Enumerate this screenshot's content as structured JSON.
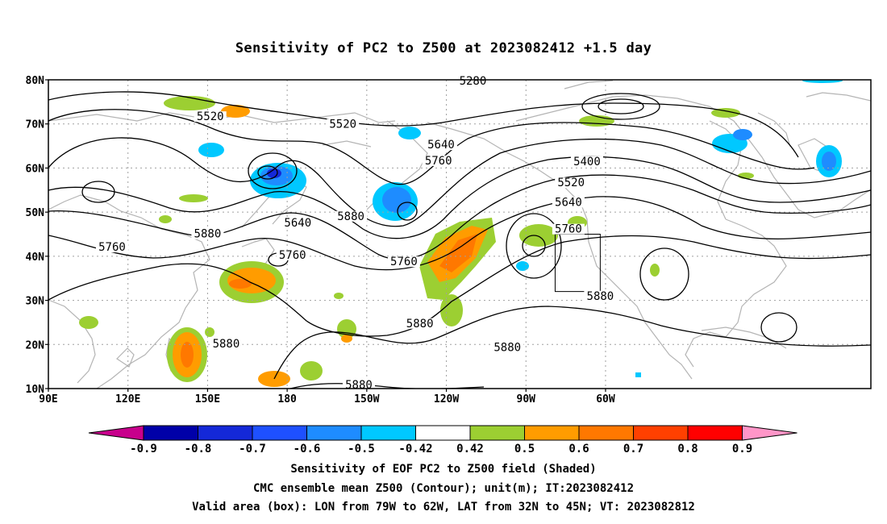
{
  "title": "Sensitivity of PC2 to Z500 at 2023082412 +1.5 day",
  "lat_ticks": [
    "80N",
    "70N",
    "60N",
    "50N",
    "40N",
    "30N",
    "20N",
    "10N"
  ],
  "lon_ticks": [
    "90E",
    "120E",
    "150E",
    "180",
    "150W",
    "120W",
    "90W",
    "60W"
  ],
  "contour_labels": [
    {
      "text": "5280",
      "lon": -110,
      "lat": 79.3
    },
    {
      "text": "5520",
      "lon": 151,
      "lat": 71.2
    },
    {
      "text": "5520",
      "lon": -159,
      "lat": 69.5
    },
    {
      "text": "5640",
      "lon": -122,
      "lat": 64.8
    },
    {
      "text": "5760",
      "lon": -123,
      "lat": 61.2
    },
    {
      "text": "5400",
      "lon": -67,
      "lat": 61.0
    },
    {
      "text": "5520",
      "lon": -73,
      "lat": 56.2
    },
    {
      "text": "5640",
      "lon": -74,
      "lat": 51.8
    },
    {
      "text": "5880",
      "lon": -156,
      "lat": 48.6
    },
    {
      "text": "5880",
      "lon": 150,
      "lat": 44.6
    },
    {
      "text": "5760",
      "lon": 114,
      "lat": 41.6
    },
    {
      "text": "5640",
      "lon": -176,
      "lat": 47.1
    },
    {
      "text": "5760",
      "lon": -178,
      "lat": 39.8
    },
    {
      "text": "5760",
      "lon": -74,
      "lat": 45.7
    },
    {
      "text": "5760",
      "lon": -136,
      "lat": 38.3
    },
    {
      "text": "5880",
      "lon": -130,
      "lat": 24.3
    },
    {
      "text": "5880",
      "lon": -62,
      "lat": 30.5
    },
    {
      "text": "5880",
      "lon": -97,
      "lat": 18.9
    },
    {
      "text": "5880",
      "lon": 157,
      "lat": 19.7
    },
    {
      "text": "5880",
      "lon": -153,
      "lat": 10.4
    }
  ],
  "valid_box": {
    "lon_west": -79,
    "lon_east": -62,
    "lat_south": 32,
    "lat_north": 45
  },
  "colorbar": {
    "labels": [
      "-0.9",
      "-0.8",
      "-0.7",
      "-0.6",
      "-0.5",
      "-0.42",
      "0.42",
      "0.5",
      "0.6",
      "0.7",
      "0.8",
      "0.9"
    ],
    "colors": [
      "#0000a8",
      "#1428d8",
      "#1e50ff",
      "#1e8cff",
      "#00c8ff",
      "#ffffff",
      "#9ccf32",
      "#ff9c00",
      "#ff7800",
      "#ff4000",
      "#ff0000"
    ],
    "low_color": "#c8008c",
    "high_color": "#ff96c8"
  },
  "captions": {
    "line1": "Sensitivity of EOF PC2 to Z500 field (Shaded)",
    "line2": "CMC ensemble mean Z500 (Contour); unit(m); IT:2023082412",
    "line3": "Valid area (box): LON from 79W to 62W, LAT from 32N to 45N; VT: 2023082812"
  }
}
